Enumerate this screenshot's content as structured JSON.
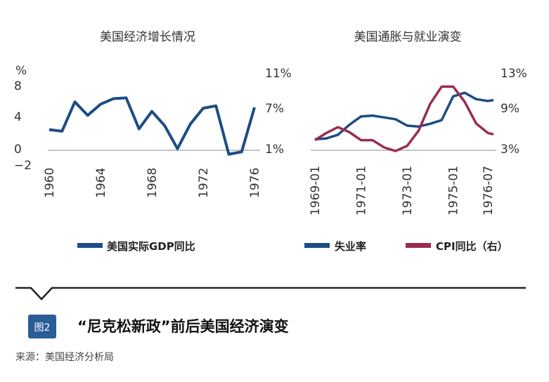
{
  "chart_data": [
    {
      "type": "line",
      "title": "美国经济增长情况",
      "x": [
        1960,
        1961,
        1962,
        1963,
        1964,
        1965,
        1966,
        1967,
        1968,
        1969,
        1970,
        1971,
        1972,
        1973,
        1974,
        1975,
        1976
      ],
      "series": [
        {
          "name": "美国实际GDP同比",
          "axis": "left",
          "color": "#1c4d85",
          "values": [
            2.6,
            2.4,
            6.1,
            4.4,
            5.8,
            6.5,
            6.6,
            2.7,
            4.9,
            3.1,
            0.2,
            3.3,
            5.3,
            5.6,
            -0.5,
            -0.2,
            5.4
          ]
        }
      ],
      "left_axis_unit": "%",
      "left_ticks": [
        "8",
        "4",
        "0",
        "−2"
      ],
      "right_ticks": [
        "11%",
        "7%",
        "1%"
      ],
      "x_tick_labels": [
        "1960",
        "1964",
        "1968",
        "1972",
        "1976"
      ],
      "ylim": [
        -2,
        8
      ]
    },
    {
      "type": "line",
      "title": "美国通胀与就业演变",
      "x": [
        "1969-01",
        "1969-07",
        "1970-01",
        "1970-07",
        "1971-01",
        "1971-07",
        "1972-01",
        "1972-07",
        "1973-01",
        "1973-07",
        "1974-01",
        "1974-07",
        "1975-01",
        "1975-07",
        "1976-01",
        "1976-07",
        "1976-10"
      ],
      "series": [
        {
          "name": "失业率",
          "axis": "left",
          "color": "#1c4d85",
          "values": [
            3.4,
            3.5,
            3.9,
            5.0,
            5.9,
            6.0,
            5.8,
            5.6,
            4.9,
            4.8,
            5.1,
            5.5,
            8.1,
            8.5,
            7.8,
            7.6,
            7.7
          ]
        },
        {
          "name": "CPI同比（右）",
          "axis": "right",
          "color": "#9b2c53",
          "values": [
            4.4,
            5.4,
            6.2,
            5.5,
            4.4,
            4.4,
            3.4,
            2.9,
            3.6,
            5.7,
            9.4,
            11.8,
            11.8,
            9.7,
            6.7,
            5.4,
            5.2
          ]
        }
      ],
      "right_ticks": [
        "13%",
        "9%",
        "3%"
      ],
      "x_tick_labels": [
        "1969-01",
        "1971-01",
        "1973-01",
        "1975-01",
        "1976-07"
      ],
      "ylim_right": [
        3,
        13
      ]
    }
  ],
  "legend": [
    {
      "label": "美国实际GDP同比",
      "color": "#1c4d85"
    },
    {
      "label": "失业率",
      "color": "#1c4d85"
    },
    {
      "label": "CPI同比（右）",
      "color": "#9b2c53"
    }
  ],
  "figure": {
    "badge": "图2",
    "caption": "“尼克松新政”前后美国经济演变",
    "source": "来源：美国经济分析局",
    "accent_color": "#1c4d85",
    "badge_color": "#2a5c98"
  }
}
